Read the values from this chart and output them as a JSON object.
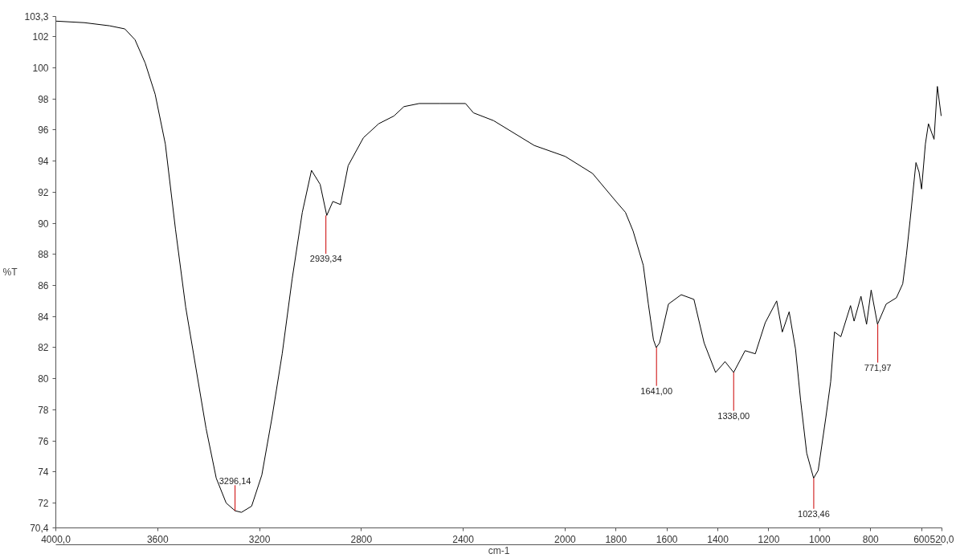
{
  "chart_data": {
    "type": "line",
    "xlabel": "cm-1",
    "ylabel": "%T",
    "xlim": [
      4000,
      520
    ],
    "ylim": [
      70.4,
      103.3
    ],
    "xticks": [
      {
        "value": 4000,
        "label": "4000,0"
      },
      3600,
      3200,
      2800,
      2400,
      2000,
      1800,
      1600,
      1400,
      1200,
      1000,
      800,
      600,
      {
        "value": 520,
        "label": "520,0"
      }
    ],
    "yticks": [
      {
        "value": 70.4,
        "label": "70,4"
      },
      72,
      74,
      76,
      78,
      80,
      82,
      84,
      86,
      88,
      90,
      92,
      94,
      96,
      98,
      100,
      102,
      {
        "value": 103.3,
        "label": "103,3"
      }
    ],
    "series": [
      {
        "color": "#000000",
        "x": [
          4000,
          3888,
          3789,
          3729,
          3689,
          3649,
          3610,
          3570,
          3530,
          3490,
          3450,
          3410,
          3370,
          3331,
          3296,
          3271,
          3231,
          3191,
          3151,
          3111,
          3072,
          3032,
          2996,
          2962,
          2936,
          2912,
          2882,
          2852,
          2792,
          2732,
          2672,
          2633,
          2573,
          2493,
          2391,
          2360,
          2281,
          2121,
          2000,
          1892,
          1800,
          1763,
          1733,
          1693,
          1673,
          1653,
          1642,
          1629,
          1594,
          1544,
          1494,
          1454,
          1409,
          1382,
          1372,
          1338,
          1293,
          1253,
          1214,
          1169,
          1147,
          1120,
          1095,
          1075,
          1051,
          1024,
          1006,
          976,
          957,
          942,
          917,
          879,
          865,
          838,
          816,
          798,
          773,
          739,
          699,
          674,
          660,
          645,
          622,
          610,
          600,
          585,
          573,
          551,
          538,
          523
        ],
        "values": [
          103.0,
          102.9,
          102.7,
          102.5,
          101.8,
          100.3,
          98.3,
          95.1,
          89.6,
          84.6,
          80.7,
          76.8,
          73.6,
          72.0,
          71.5,
          71.4,
          71.8,
          73.8,
          77.5,
          81.6,
          86.4,
          90.7,
          93.4,
          92.5,
          90.5,
          91.4,
          91.2,
          93.7,
          95.5,
          96.4,
          96.9,
          97.5,
          97.7,
          97.7,
          97.7,
          97.1,
          96.6,
          95.0,
          94.3,
          93.2,
          91.4,
          90.7,
          89.5,
          87.3,
          84.8,
          82.5,
          82.0,
          82.3,
          84.8,
          85.4,
          85.1,
          82.3,
          80.4,
          80.9,
          81.1,
          80.4,
          81.8,
          81.6,
          83.6,
          85.0,
          83.0,
          84.3,
          81.9,
          78.6,
          75.2,
          73.6,
          74.1,
          77.5,
          79.8,
          83.0,
          82.7,
          84.7,
          83.7,
          85.3,
          83.5,
          85.7,
          83.5,
          84.8,
          85.2,
          86.1,
          87.9,
          90.2,
          93.9,
          93.3,
          92.2,
          95.1,
          96.4,
          95.4,
          98.8,
          96.9
        ]
      }
    ],
    "annotations": [
      {
        "text": "3296,14",
        "x": 3296.14,
        "y": 71.5
      },
      {
        "text": "2939,34",
        "x": 2939.34,
        "y": 90.5
      },
      {
        "text": "1641,00",
        "x": 1641.0,
        "y": 82.0
      },
      {
        "text": "1338,00",
        "x": 1338.0,
        "y": 80.4
      },
      {
        "text": "1023,46",
        "x": 1023.46,
        "y": 73.6
      },
      {
        "text": "771,97",
        "x": 771.97,
        "y": 83.5
      }
    ]
  }
}
